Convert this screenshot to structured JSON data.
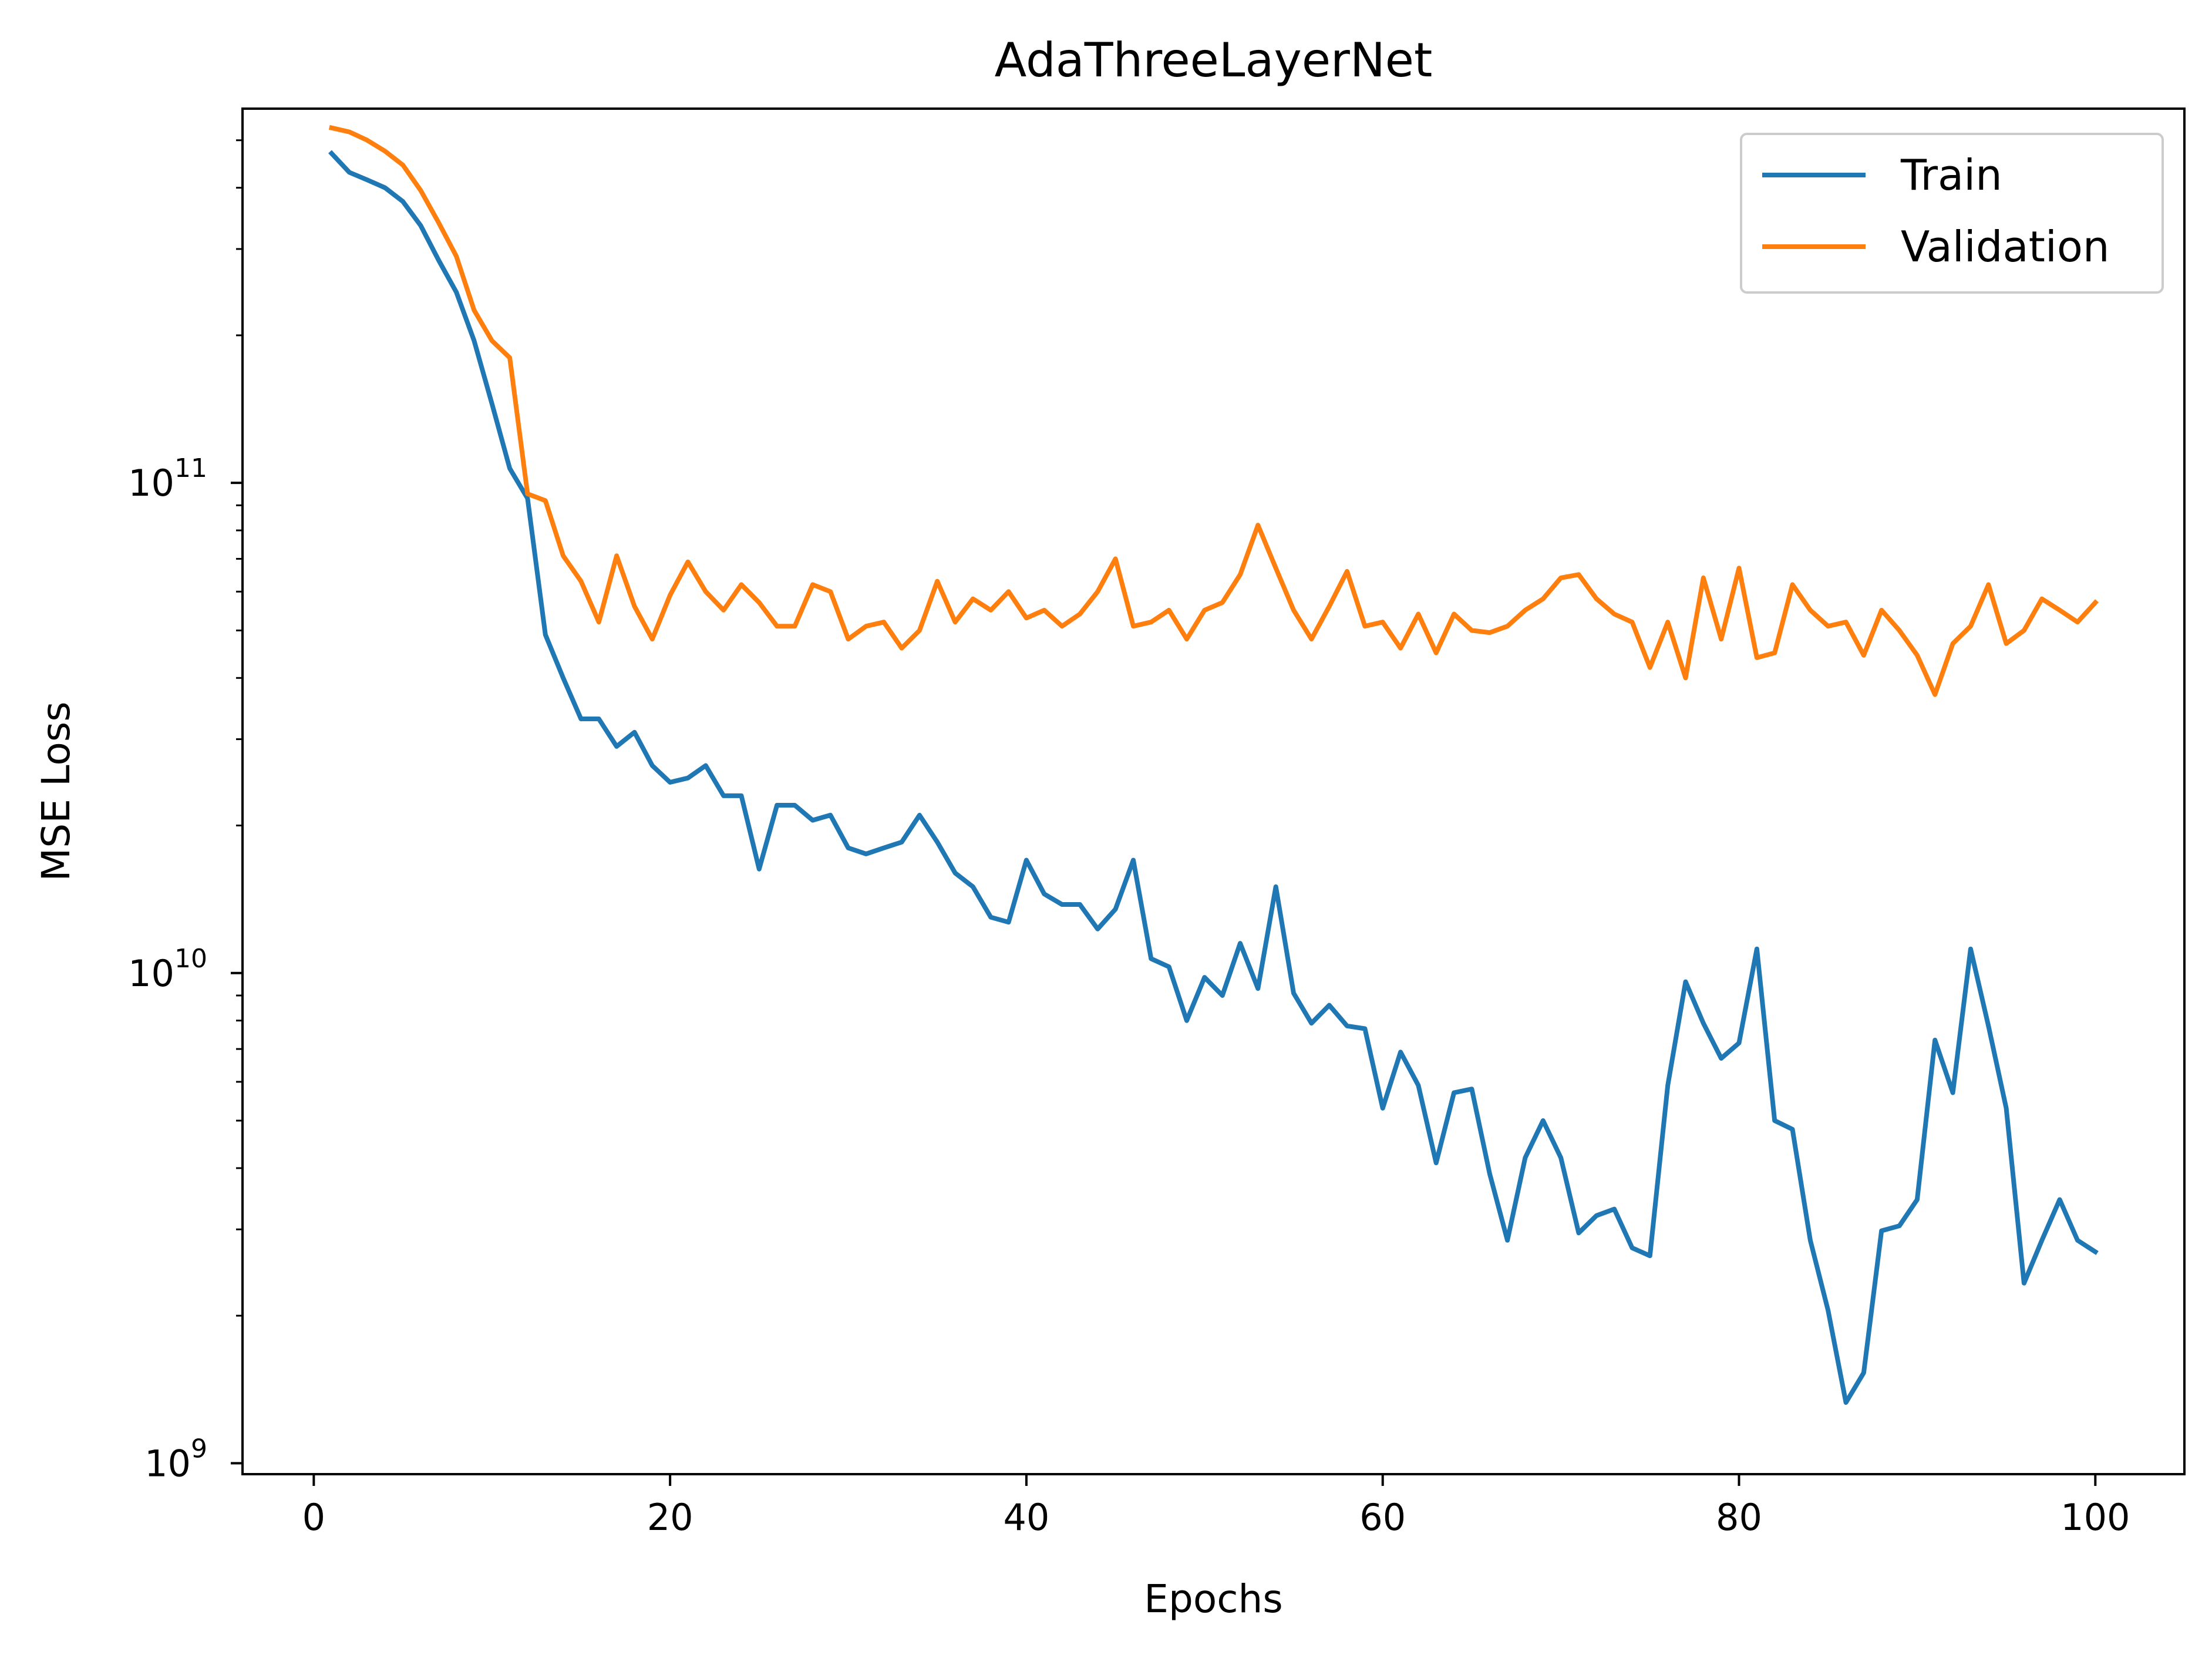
{
  "chart_data": {
    "type": "line",
    "title": "AdaThreeLayerNet",
    "xlabel": "Epochs",
    "ylabel": "MSE Loss",
    "x_scale": "linear",
    "y_scale": "log",
    "xlim": [
      -4,
      105
    ],
    "ylim": [
      950000000,
      580000000000
    ],
    "x_ticks": [
      {
        "value": 0,
        "label": "0"
      },
      {
        "value": 20,
        "label": "20"
      },
      {
        "value": 40,
        "label": "40"
      },
      {
        "value": 60,
        "label": "60"
      },
      {
        "value": 80,
        "label": "80"
      },
      {
        "value": 100,
        "label": "100"
      }
    ],
    "y_ticks": [
      {
        "value": 1000000000,
        "base": "10",
        "exp": "9"
      },
      {
        "value": 10000000000,
        "base": "10",
        "exp": "10"
      },
      {
        "value": 100000000000,
        "base": "10",
        "exp": "11"
      }
    ],
    "grid": false,
    "legend_position": "top-right",
    "x": [
      1,
      2,
      3,
      4,
      5,
      6,
      7,
      8,
      9,
      10,
      11,
      12,
      13,
      14,
      15,
      16,
      17,
      18,
      19,
      20,
      21,
      22,
      23,
      24,
      25,
      26,
      27,
      28,
      29,
      30,
      31,
      32,
      33,
      34,
      35,
      36,
      37,
      38,
      39,
      40,
      41,
      42,
      43,
      44,
      45,
      46,
      47,
      48,
      49,
      50,
      51,
      52,
      53,
      54,
      55,
      56,
      57,
      58,
      59,
      60,
      61,
      62,
      63,
      64,
      65,
      66,
      67,
      68,
      69,
      70,
      71,
      72,
      73,
      74,
      75,
      76,
      77,
      78,
      79,
      80,
      81,
      82,
      83,
      84,
      85,
      86,
      87,
      88,
      89,
      90,
      91,
      92,
      93,
      94,
      95,
      96,
      97,
      98,
      99,
      100
    ],
    "series": [
      {
        "name": "Train",
        "color": "#1f77b4",
        "values": [
          470000000000,
          430000000000,
          415000000000,
          400000000000,
          375000000000,
          335000000000,
          285000000000,
          245000000000,
          195000000000,
          145000000000,
          107000000000,
          93000000000,
          49000000000,
          40000000000,
          33000000000,
          33000000000,
          29000000000,
          31000000000,
          26500000000,
          24500000000,
          25000000000,
          26500000000,
          23000000000,
          23000000000,
          16300000000,
          22000000000,
          22000000000,
          20500000000,
          21000000000,
          18000000000,
          17500000000,
          18000000000,
          18500000000,
          21000000000,
          18500000000,
          16000000000,
          15000000000,
          13000000000,
          12700000000,
          17000000000,
          14500000000,
          13800000000,
          13800000000,
          12300000000,
          13500000000,
          17000000000,
          10700000000,
          10300000000,
          8000000000,
          9800000000,
          9000000000,
          11500000000,
          9300000000,
          15000000000,
          9100000000,
          7900000000,
          8600000000,
          7800000000,
          7700000000,
          5300000000,
          6900000000,
          5900000000,
          4100000000,
          5700000000,
          5800000000,
          3900000000,
          2850000000,
          4200000000,
          5000000000,
          4200000000,
          2950000000,
          3200000000,
          3300000000,
          2750000000,
          2650000000,
          5900000000,
          9600000000,
          7900000000,
          6700000000,
          7200000000,
          11200000000,
          5000000000,
          4800000000,
          2850000000,
          2050000000,
          1330000000,
          1530000000,
          2980000000,
          3050000000,
          3450000000,
          7300000000,
          5700000000,
          11200000000,
          7800000000,
          5300000000,
          2330000000,
          2850000000,
          3450000000,
          2850000000,
          2700000000
        ]
      },
      {
        "name": "Validation",
        "color": "#ff7f0e",
        "values": [
          530000000000,
          520000000000,
          500000000000,
          475000000000,
          445000000000,
          395000000000,
          340000000000,
          290000000000,
          225000000000,
          195000000000,
          180000000000,
          95000000000,
          92000000000,
          71000000000,
          63000000000,
          52000000000,
          71000000000,
          56000000000,
          48000000000,
          59000000000,
          69000000000,
          60000000000,
          55000000000,
          62000000000,
          57000000000,
          51000000000,
          51000000000,
          62000000000,
          60000000000,
          48000000000,
          51000000000,
          52000000000,
          46000000000,
          50000000000,
          63000000000,
          52000000000,
          58000000000,
          55000000000,
          60000000000,
          53000000000,
          55000000000,
          51000000000,
          54000000000,
          60000000000,
          70000000000,
          51000000000,
          52000000000,
          55000000000,
          48000000000,
          55000000000,
          57000000000,
          65000000000,
          82000000000,
          67000000000,
          55000000000,
          48000000000,
          56000000000,
          66000000000,
          51000000000,
          52000000000,
          46000000000,
          54000000000,
          45000000000,
          54000000000,
          50000000000,
          49500000000,
          51000000000,
          55000000000,
          58000000000,
          64000000000,
          65000000000,
          58000000000,
          54000000000,
          52000000000,
          42000000000,
          52000000000,
          40000000000,
          64000000000,
          48000000000,
          67000000000,
          44000000000,
          45000000000,
          62000000000,
          55000000000,
          51000000000,
          52000000000,
          44500000000,
          55000000000,
          50000000000,
          44500000000,
          37000000000,
          47000000000,
          51000000000,
          62000000000,
          47000000000,
          50000000000,
          58000000000,
          55000000000,
          52000000000,
          57000000000
        ]
      }
    ]
  }
}
